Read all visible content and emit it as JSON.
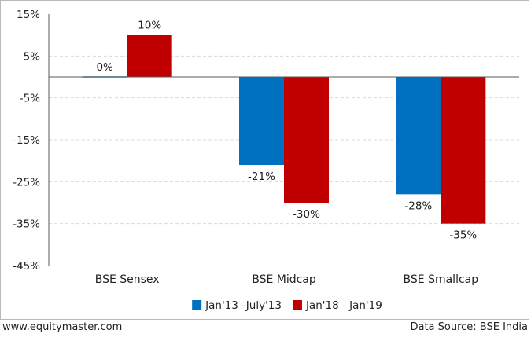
{
  "chart_data": {
    "type": "bar",
    "categories": [
      "BSE Sensex",
      "BSE Midcap",
      "BSE Smallcap"
    ],
    "series": [
      {
        "name": "Jan'13 -July'13",
        "values": [
          0,
          -21,
          -28
        ],
        "labels": [
          "0%",
          "-21%",
          "-28%"
        ],
        "color": "#0070c0"
      },
      {
        "name": "Jan'18 - Jan'19",
        "values": [
          10,
          -30,
          -35
        ],
        "labels": [
          "10%",
          "-30%",
          "-35%"
        ],
        "color": "#c00000"
      }
    ],
    "y_ticks": [
      15,
      5,
      -5,
      -15,
      -25,
      -35,
      -45
    ],
    "y_tick_labels": [
      "15%",
      "5%",
      "-5%",
      "-15%",
      "-25%",
      "-35%",
      "-45%"
    ],
    "ylim": [
      -45,
      15
    ],
    "grid": true,
    "legend_position": "bottom-center"
  },
  "footer": {
    "left": "www.equitymaster.com",
    "right": "Data Source: BSE India"
  }
}
